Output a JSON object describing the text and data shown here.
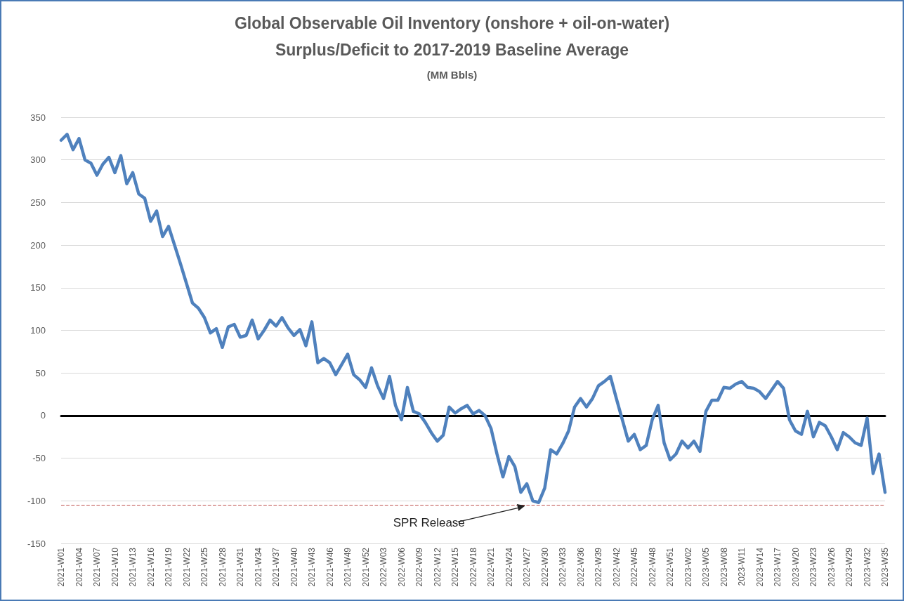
{
  "chart_data": {
    "type": "line",
    "title": "Global Observable Oil Inventory (onshore + oil-on-water)",
    "subtitle": "Surplus/Deficit to 2017-2019 Baseline Average",
    "annotations": [
      "(MM Bbls)"
    ],
    "categories": [
      "2021-W01",
      null,
      null,
      "2021-W04",
      null,
      null,
      "2021-W07",
      null,
      null,
      "2021-W10",
      null,
      null,
      "2021-W13",
      null,
      null,
      "2021-W16",
      null,
      null,
      "2021-W19",
      null,
      null,
      "2021-W22",
      null,
      null,
      "2021-W25",
      null,
      null,
      "2021-W28",
      null,
      null,
      "2021-W31",
      null,
      null,
      "2021-W34",
      null,
      null,
      "2021-W37",
      null,
      null,
      "2021-W40",
      null,
      null,
      "2021-W43",
      null,
      null,
      "2021-W46",
      null,
      null,
      "2021-W49",
      null,
      null,
      "2021-W52",
      null,
      null,
      "2022-W03",
      null,
      null,
      "2022-W06",
      null,
      null,
      "2022-W09",
      null,
      null,
      "2022-W12",
      null,
      null,
      "2022-W15",
      null,
      null,
      "2022-W18",
      null,
      null,
      "2022-W21",
      null,
      null,
      "2022-W24",
      null,
      null,
      "2022-W27",
      null,
      null,
      "2022-W30",
      null,
      null,
      "2022-W33",
      null,
      null,
      "2022-W36",
      null,
      null,
      "2022-W39",
      null,
      null,
      "2022-W42",
      null,
      null,
      "2022-W45",
      null,
      null,
      "2022-W48",
      null,
      null,
      "2022-W51",
      null,
      null,
      "2023-W02",
      null,
      null,
      "2023-W05",
      null,
      null,
      "2023-W08",
      null,
      null,
      "2023-W11",
      null,
      null,
      "2023-W14",
      null,
      null,
      "2023-W17",
      null,
      null,
      "2023-W20",
      null,
      null,
      "2023-W23",
      null,
      null,
      "2023-W26",
      null,
      null,
      "2023-W29",
      null,
      null,
      "2023-W32",
      null,
      null,
      "2023-W35"
    ],
    "series": [
      {
        "color": "#4f81bd",
        "values": [
          323,
          330,
          312,
          325,
          300,
          296,
          282,
          295,
          303,
          285,
          305,
          272,
          285,
          260,
          255,
          228,
          240,
          210,
          222,
          200,
          178,
          155,
          132,
          126,
          115,
          97,
          102,
          80,
          104,
          107,
          92,
          94,
          112,
          90,
          100,
          112,
          105,
          115,
          103,
          94,
          101,
          82,
          110,
          62,
          67,
          62,
          48,
          60,
          72,
          48,
          42,
          33,
          56,
          35,
          20,
          46,
          12,
          -5,
          33,
          5,
          2,
          -8,
          -20,
          -30,
          -23,
          10,
          3,
          8,
          12,
          2,
          6,
          0,
          -15,
          -45,
          -72,
          -48,
          -60,
          -90,
          -80,
          -100,
          -102,
          -85,
          -40,
          -45,
          -33,
          -18,
          10,
          20,
          10,
          20,
          35,
          40,
          46,
          20,
          -5,
          -30,
          -22,
          -40,
          -35,
          -5,
          12,
          -32,
          -52,
          -45,
          -30,
          -38,
          -30,
          -42,
          5,
          18,
          18,
          33,
          32,
          37,
          40,
          33,
          32,
          28,
          20,
          30,
          40,
          32,
          -5,
          -18,
          -22,
          5,
          -25,
          -8,
          -12,
          -25,
          -40,
          -20,
          -25,
          -32,
          -35,
          -3,
          -68,
          -45,
          -90
        ]
      }
    ],
    "ylim": [
      -150,
      350
    ],
    "yticks": [
      -150,
      -100,
      -50,
      0,
      50,
      100,
      150,
      200,
      250,
      300,
      350
    ],
    "grid": "y",
    "marker": "none",
    "line_style": "solid",
    "ref_lines": [
      {
        "axis": "y",
        "value": -105,
        "label": "SPR Release",
        "color": "#c0504d",
        "line_style": "dashed"
      }
    ]
  }
}
